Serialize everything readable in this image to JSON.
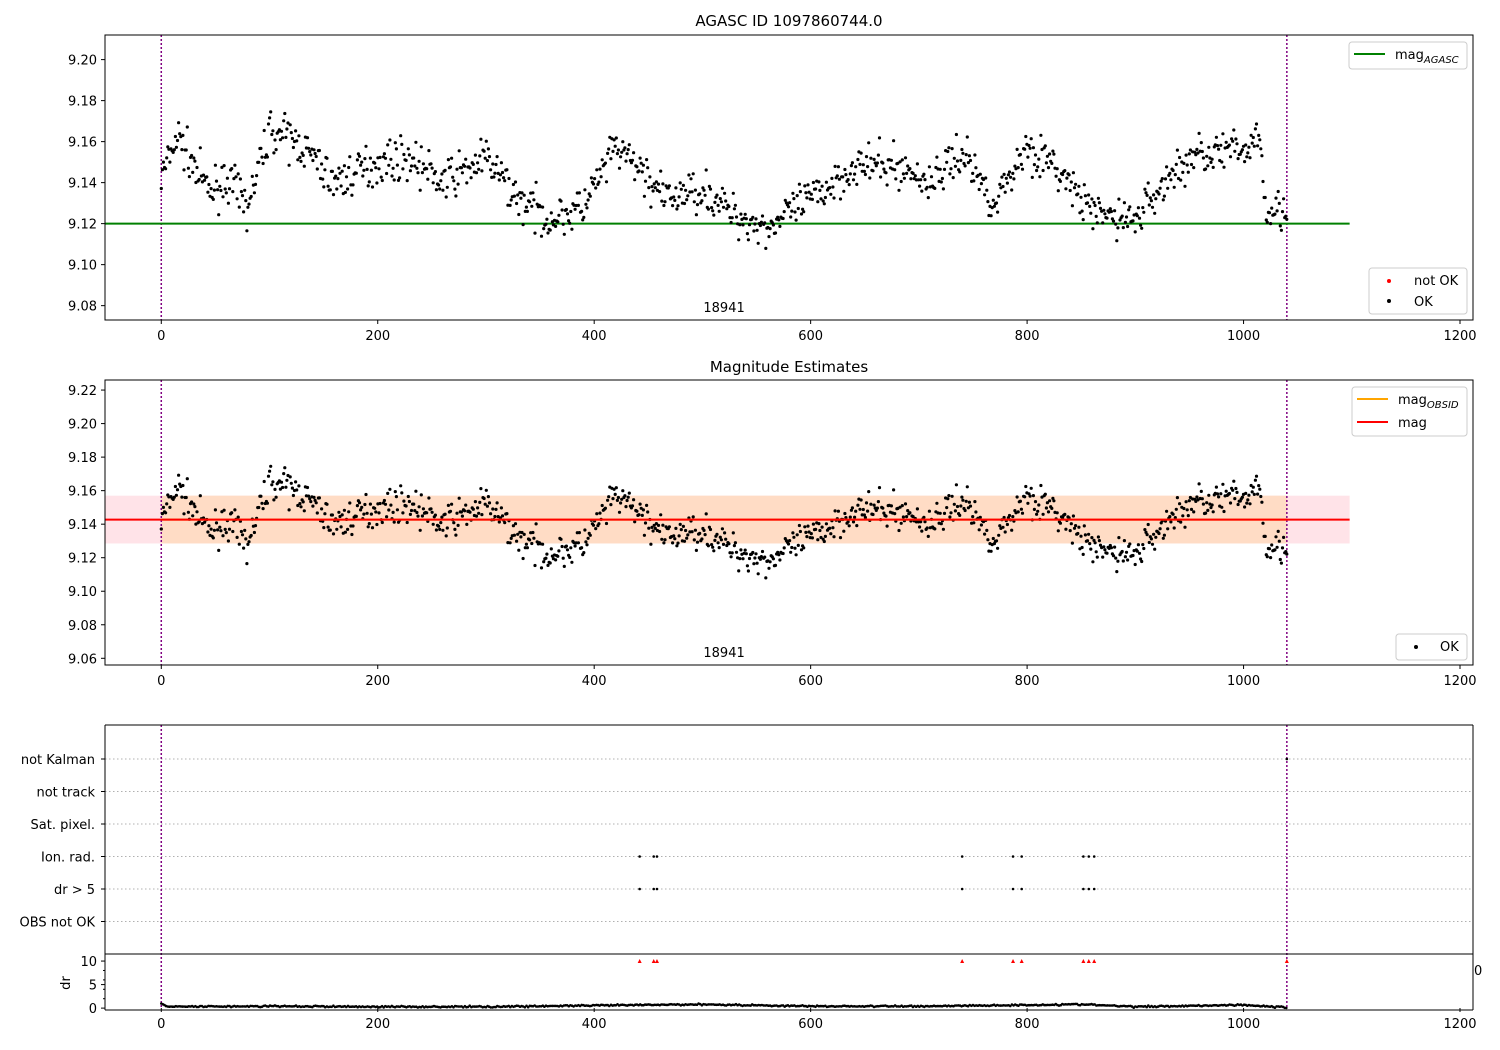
{
  "figure": {
    "title": "AGASC ID 1097860744.0",
    "subtitle": "Magnitude Estimates",
    "obsid_label": "18941"
  },
  "colors": {
    "points_ok": "#000000",
    "points_not_ok": "#ff0000",
    "agasc_line": "#008000",
    "obsid_line": "#ffa500",
    "mag_line": "#ff0000",
    "mag_band": "#ffc0cb",
    "obsid_band": "#ffdab9",
    "obsid_boundary": "#800080"
  },
  "legends": {
    "top_lines": [
      "mag",
      "AGASC"
    ],
    "top_points": [
      "not OK",
      "OK"
    ],
    "mid_lines": [
      [
        "mag",
        "OBSID"
      ],
      [
        "mag",
        ""
      ]
    ],
    "mid_points": [
      "OK"
    ]
  },
  "chart_data": [
    {
      "type": "scatter",
      "title": "AGASC ID 1097860744.0",
      "xlim": [
        -52,
        1212
      ],
      "ylim": [
        9.073,
        9.212
      ],
      "xticks": [
        0,
        200,
        400,
        600,
        800,
        1000,
        1200
      ],
      "yticks": [
        9.08,
        9.1,
        9.12,
        9.14,
        9.16,
        9.18,
        9.2
      ],
      "mag_agasc": 9.12,
      "agasc_line_x": [
        -52,
        1098
      ],
      "obsid_boundaries": [
        0,
        1040
      ],
      "obsid_annotation": {
        "text": "18941",
        "x": 520
      },
      "series": [
        {
          "name": "OK",
          "trend_knots": [
            [
              0,
              9.142
            ],
            [
              15,
              9.163
            ],
            [
              30,
              9.148
            ],
            [
              45,
              9.135
            ],
            [
              60,
              9.142
            ],
            [
              80,
              9.128
            ],
            [
              100,
              9.166
            ],
            [
              130,
              9.158
            ],
            [
              160,
              9.14
            ],
            [
              200,
              9.15
            ],
            [
              230,
              9.152
            ],
            [
              260,
              9.14
            ],
            [
              300,
              9.152
            ],
            [
              330,
              9.132
            ],
            [
              360,
              9.122
            ],
            [
              390,
              9.128
            ],
            [
              420,
              9.157
            ],
            [
              445,
              9.145
            ],
            [
              465,
              9.132
            ],
            [
              500,
              9.137
            ],
            [
              530,
              9.124
            ],
            [
              560,
              9.118
            ],
            [
              600,
              9.132
            ],
            [
              640,
              9.148
            ],
            [
              680,
              9.148
            ],
            [
              710,
              9.14
            ],
            [
              740,
              9.155
            ],
            [
              770,
              9.13
            ],
            [
              800,
              9.158
            ],
            [
              830,
              9.145
            ],
            [
              860,
              9.125
            ],
            [
              900,
              9.122
            ],
            [
              930,
              9.142
            ],
            [
              960,
              9.155
            ],
            [
              1000,
              9.155
            ],
            [
              1015,
              9.165
            ],
            [
              1020,
              9.13
            ],
            [
              1040,
              9.125
            ]
          ],
          "x_range": [
            0,
            1040
          ],
          "n_points": 1040,
          "noise": 0.007
        },
        {
          "name": "not OK",
          "x": [],
          "y": []
        }
      ]
    },
    {
      "type": "scatter",
      "title": "Magnitude Estimates",
      "xlim": [
        -52,
        1212
      ],
      "ylim": [
        9.056,
        9.226
      ],
      "xticks": [
        0,
        200,
        400,
        600,
        800,
        1000,
        1200
      ],
      "yticks": [
        9.06,
        9.08,
        9.1,
        9.12,
        9.14,
        9.16,
        9.18,
        9.2,
        9.22
      ],
      "mag_obsid": 9.1427,
      "mag_obsid_band": [
        9.1285,
        9.157
      ],
      "mag": 9.1427,
      "mag_band": [
        9.1285,
        9.157
      ],
      "mag_line_x": [
        -52,
        1098
      ],
      "obsid_annotation": {
        "text": "18941",
        "x": 520
      },
      "series": [
        {
          "name": "OK",
          "same_as": "panel_1"
        }
      ]
    },
    {
      "type": "scatter",
      "title": "",
      "xlim": [
        -52,
        1212
      ],
      "flag_labels": [
        "not Kalman",
        "not track",
        "Sat. pixel.",
        "Ion. rad.",
        "dr > 5",
        "OBS not OK"
      ],
      "flags": {
        "Ion. rad.": [
          442,
          455,
          458,
          740,
          787,
          795,
          852,
          857,
          862
        ],
        "dr > 5": [
          442,
          455,
          458,
          740,
          787,
          795,
          852,
          857,
          862
        ],
        "not Kalman": [
          1040
        ]
      }
    },
    {
      "type": "scatter",
      "title": "",
      "xlim": [
        -52,
        1212
      ],
      "ylim": [
        -0.4,
        11.5
      ],
      "yticks": [
        0,
        5,
        10
      ],
      "xticks": [
        0,
        200,
        400,
        600,
        800,
        1000,
        1200
      ],
      "ylabel": "dr",
      "right_tick_label": "0",
      "dr_clipped_at": 10,
      "dr_clipped_x": [
        442,
        455,
        458,
        740,
        787,
        795,
        852,
        857,
        862,
        1040
      ],
      "dr_trend_knots": [
        [
          0,
          0.9
        ],
        [
          5,
          0.3
        ],
        [
          100,
          0.4
        ],
        [
          200,
          0.3
        ],
        [
          300,
          0.3
        ],
        [
          420,
          0.6
        ],
        [
          500,
          0.8
        ],
        [
          600,
          0.4
        ],
        [
          700,
          0.4
        ],
        [
          850,
          0.8
        ],
        [
          900,
          0.3
        ],
        [
          1000,
          0.7
        ],
        [
          1040,
          0.1
        ]
      ]
    }
  ]
}
